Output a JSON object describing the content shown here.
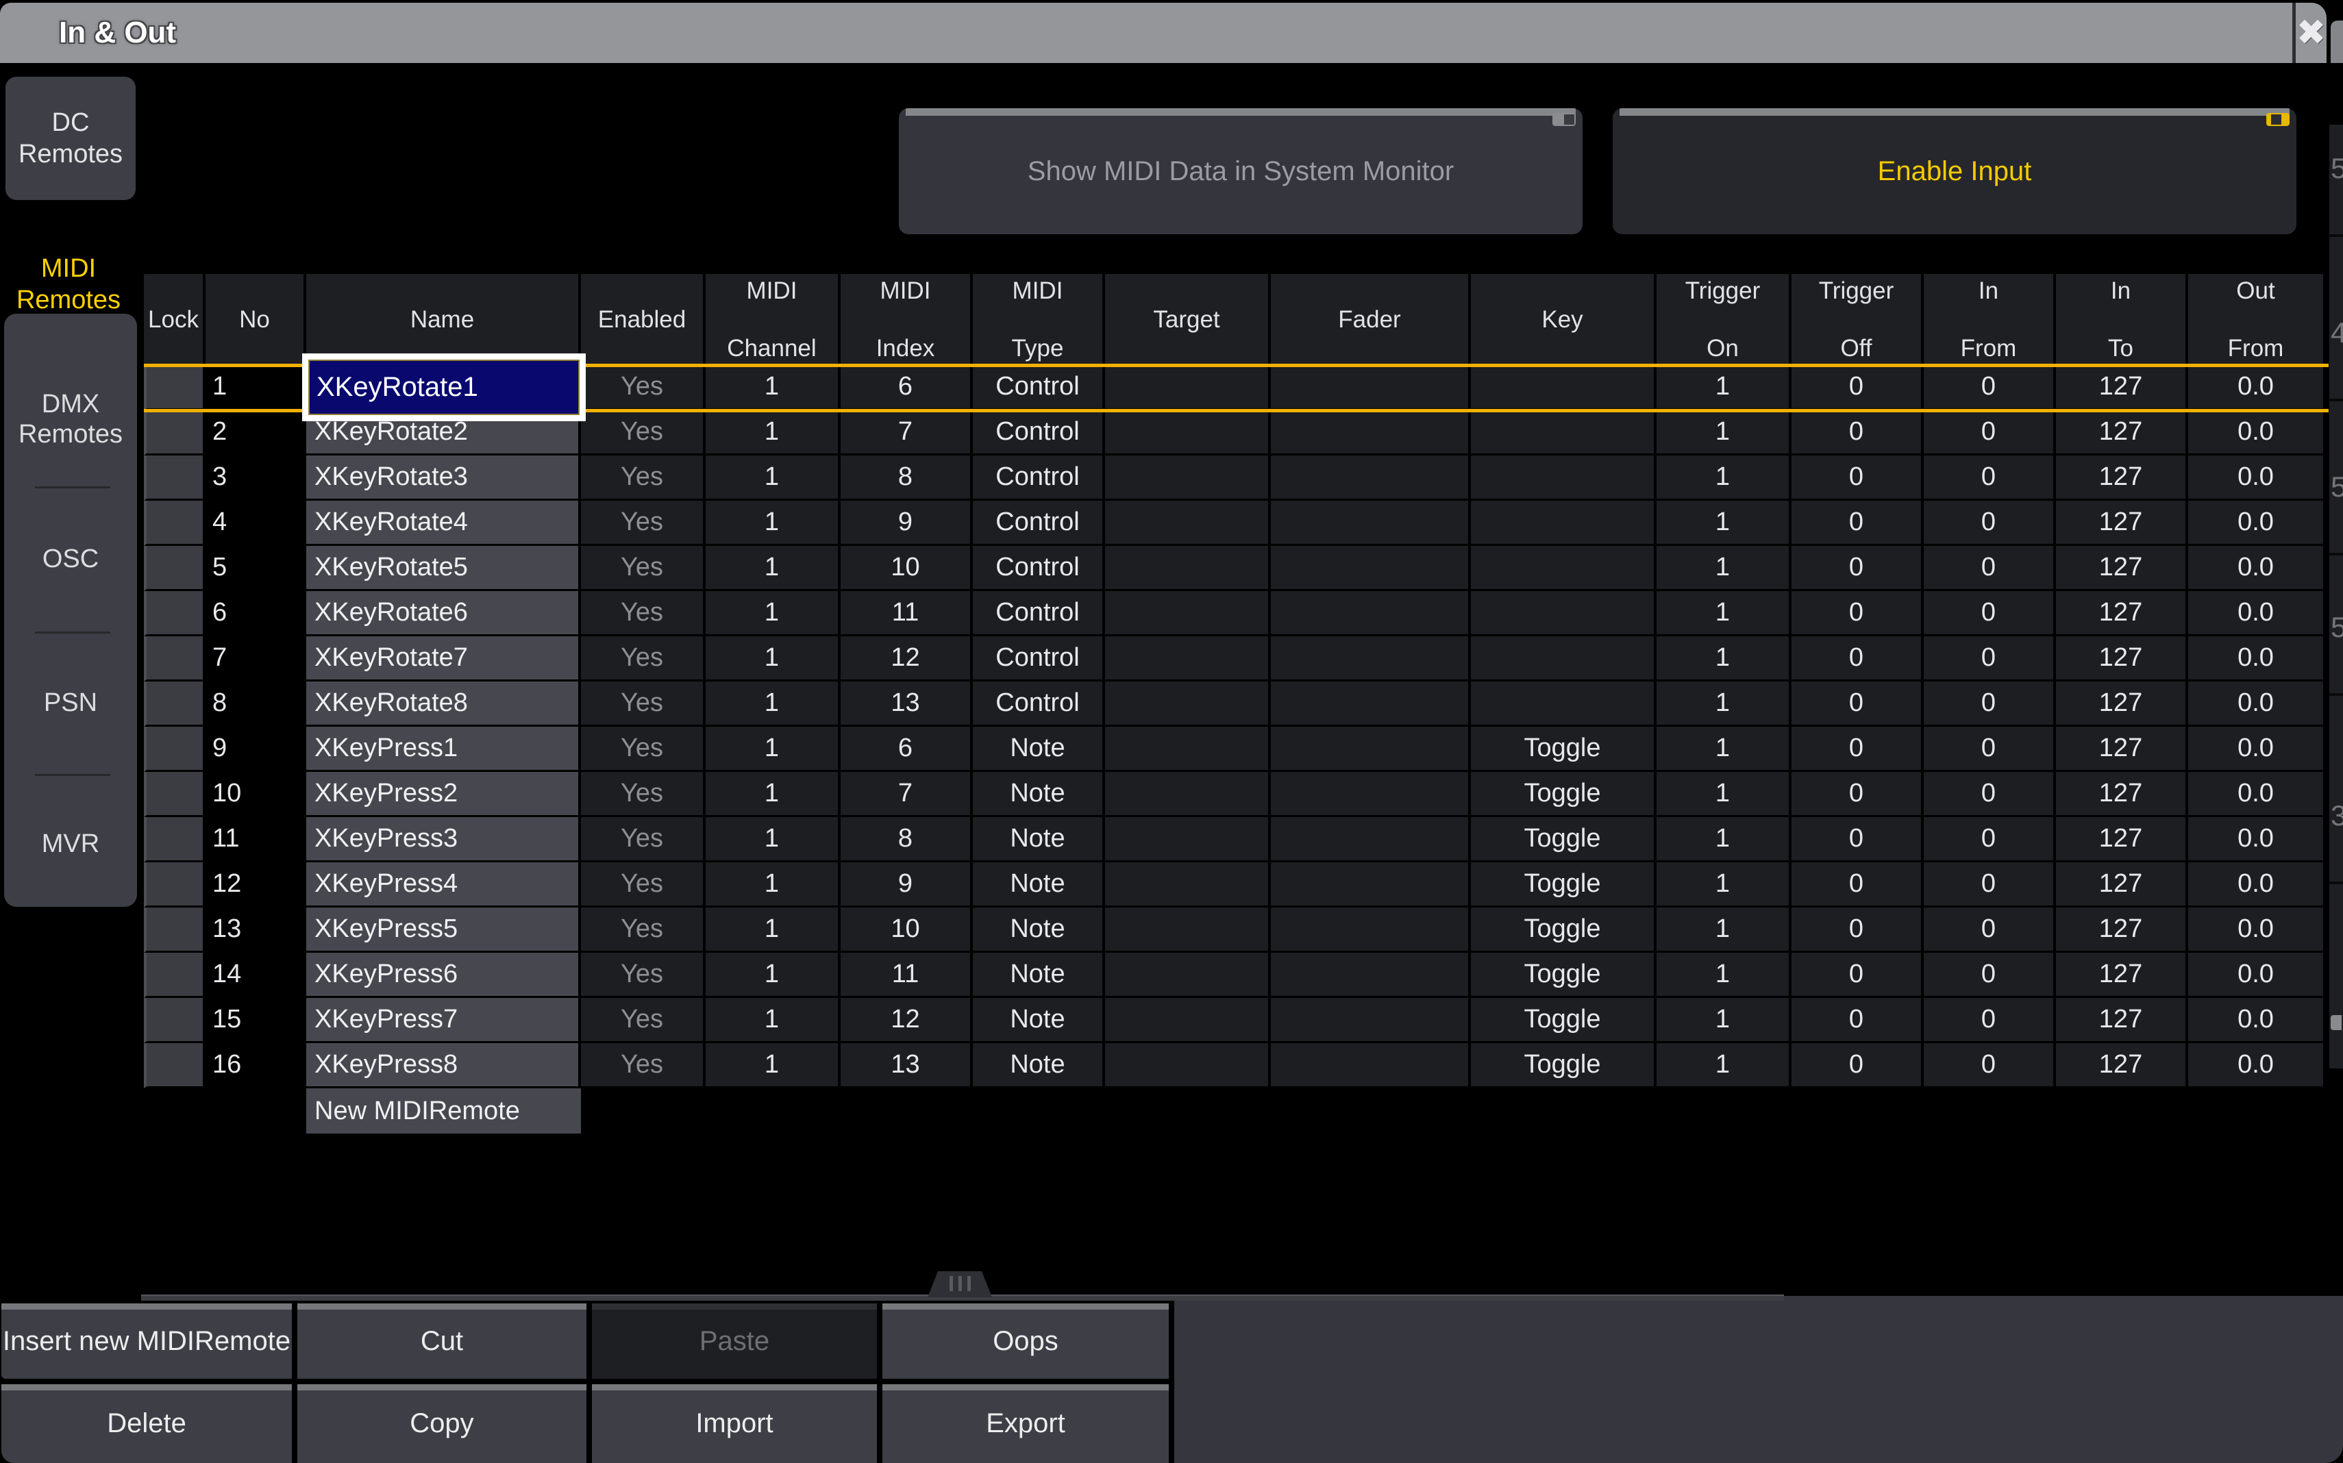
{
  "window": {
    "title": "In & Out",
    "close_icon": "✖"
  },
  "colors": {
    "accent_yellow": "#ffd200",
    "selection_line": "#f2b100",
    "selected_cell_bg": "#08086e",
    "titlebar_gray": "#95969a",
    "panel_gray": "#3e3f46",
    "cell_dark": "#1d1e22",
    "name_cell_gray": "#47484f",
    "disabled_text": "#8e8f93"
  },
  "sidebar": {
    "tabs": [
      {
        "label": "DC Remotes",
        "selected": false
      },
      {
        "label": "MIDI Remotes",
        "selected": true
      },
      {
        "label": "DMX Remotes",
        "selected": false
      },
      {
        "label": "OSC",
        "selected": false
      },
      {
        "label": "PSN",
        "selected": false
      },
      {
        "label": "MVR",
        "selected": false
      }
    ]
  },
  "top_buttons": {
    "show_midi": {
      "label": "Show MIDI Data in System Monitor",
      "state": "off"
    },
    "enable_input": {
      "label": "Enable Input",
      "state": "on"
    }
  },
  "table": {
    "columns": [
      "Lock",
      "No",
      "Name",
      "Enabled",
      "MIDI Channel",
      "MIDI Index",
      "MIDI Type",
      "Target",
      "Fader",
      "Key",
      "Trigger On",
      "Trigger Off",
      "In From",
      "In To",
      "Out From"
    ],
    "rows": [
      {
        "no": "1",
        "name": "XKeyRotate1",
        "enabled": "Yes",
        "midi_channel": "1",
        "midi_index": "6",
        "midi_type": "Control",
        "target": "",
        "fader": "",
        "key": "",
        "trigger_on": "1",
        "trigger_off": "0",
        "in_from": "0",
        "in_to": "127",
        "out_from": "0.0"
      },
      {
        "no": "2",
        "name": "XKeyRotate2",
        "enabled": "Yes",
        "midi_channel": "1",
        "midi_index": "7",
        "midi_type": "Control",
        "target": "",
        "fader": "",
        "key": "",
        "trigger_on": "1",
        "trigger_off": "0",
        "in_from": "0",
        "in_to": "127",
        "out_from": "0.0"
      },
      {
        "no": "3",
        "name": "XKeyRotate3",
        "enabled": "Yes",
        "midi_channel": "1",
        "midi_index": "8",
        "midi_type": "Control",
        "target": "",
        "fader": "",
        "key": "",
        "trigger_on": "1",
        "trigger_off": "0",
        "in_from": "0",
        "in_to": "127",
        "out_from": "0.0"
      },
      {
        "no": "4",
        "name": "XKeyRotate4",
        "enabled": "Yes",
        "midi_channel": "1",
        "midi_index": "9",
        "midi_type": "Control",
        "target": "",
        "fader": "",
        "key": "",
        "trigger_on": "1",
        "trigger_off": "0",
        "in_from": "0",
        "in_to": "127",
        "out_from": "0.0"
      },
      {
        "no": "5",
        "name": "XKeyRotate5",
        "enabled": "Yes",
        "midi_channel": "1",
        "midi_index": "10",
        "midi_type": "Control",
        "target": "",
        "fader": "",
        "key": "",
        "trigger_on": "1",
        "trigger_off": "0",
        "in_from": "0",
        "in_to": "127",
        "out_from": "0.0"
      },
      {
        "no": "6",
        "name": "XKeyRotate6",
        "enabled": "Yes",
        "midi_channel": "1",
        "midi_index": "11",
        "midi_type": "Control",
        "target": "",
        "fader": "",
        "key": "",
        "trigger_on": "1",
        "trigger_off": "0",
        "in_from": "0",
        "in_to": "127",
        "out_from": "0.0"
      },
      {
        "no": "7",
        "name": "XKeyRotate7",
        "enabled": "Yes",
        "midi_channel": "1",
        "midi_index": "12",
        "midi_type": "Control",
        "target": "",
        "fader": "",
        "key": "",
        "trigger_on": "1",
        "trigger_off": "0",
        "in_from": "0",
        "in_to": "127",
        "out_from": "0.0"
      },
      {
        "no": "8",
        "name": "XKeyRotate8",
        "enabled": "Yes",
        "midi_channel": "1",
        "midi_index": "13",
        "midi_type": "Control",
        "target": "",
        "fader": "",
        "key": "",
        "trigger_on": "1",
        "trigger_off": "0",
        "in_from": "0",
        "in_to": "127",
        "out_from": "0.0"
      },
      {
        "no": "9",
        "name": "XKeyPress1",
        "enabled": "Yes",
        "midi_channel": "1",
        "midi_index": "6",
        "midi_type": "Note",
        "target": "",
        "fader": "",
        "key": "Toggle",
        "trigger_on": "1",
        "trigger_off": "0",
        "in_from": "0",
        "in_to": "127",
        "out_from": "0.0"
      },
      {
        "no": "10",
        "name": "XKeyPress2",
        "enabled": "Yes",
        "midi_channel": "1",
        "midi_index": "7",
        "midi_type": "Note",
        "target": "",
        "fader": "",
        "key": "Toggle",
        "trigger_on": "1",
        "trigger_off": "0",
        "in_from": "0",
        "in_to": "127",
        "out_from": "0.0"
      },
      {
        "no": "11",
        "name": "XKeyPress3",
        "enabled": "Yes",
        "midi_channel": "1",
        "midi_index": "8",
        "midi_type": "Note",
        "target": "",
        "fader": "",
        "key": "Toggle",
        "trigger_on": "1",
        "trigger_off": "0",
        "in_from": "0",
        "in_to": "127",
        "out_from": "0.0"
      },
      {
        "no": "12",
        "name": "XKeyPress4",
        "enabled": "Yes",
        "midi_channel": "1",
        "midi_index": "9",
        "midi_type": "Note",
        "target": "",
        "fader": "",
        "key": "Toggle",
        "trigger_on": "1",
        "trigger_off": "0",
        "in_from": "0",
        "in_to": "127",
        "out_from": "0.0"
      },
      {
        "no": "13",
        "name": "XKeyPress5",
        "enabled": "Yes",
        "midi_channel": "1",
        "midi_index": "10",
        "midi_type": "Note",
        "target": "",
        "fader": "",
        "key": "Toggle",
        "trigger_on": "1",
        "trigger_off": "0",
        "in_from": "0",
        "in_to": "127",
        "out_from": "0.0"
      },
      {
        "no": "14",
        "name": "XKeyPress6",
        "enabled": "Yes",
        "midi_channel": "1",
        "midi_index": "11",
        "midi_type": "Note",
        "target": "",
        "fader": "",
        "key": "Toggle",
        "trigger_on": "1",
        "trigger_off": "0",
        "in_from": "0",
        "in_to": "127",
        "out_from": "0.0"
      },
      {
        "no": "15",
        "name": "XKeyPress7",
        "enabled": "Yes",
        "midi_channel": "1",
        "midi_index": "12",
        "midi_type": "Note",
        "target": "",
        "fader": "",
        "key": "Toggle",
        "trigger_on": "1",
        "trigger_off": "0",
        "in_from": "0",
        "in_to": "127",
        "out_from": "0.0"
      },
      {
        "no": "16",
        "name": "XKeyPress8",
        "enabled": "Yes",
        "midi_channel": "1",
        "midi_index": "13",
        "midi_type": "Note",
        "target": "",
        "fader": "",
        "key": "Toggle",
        "trigger_on": "1",
        "trigger_off": "0",
        "in_from": "0",
        "in_to": "127",
        "out_from": "0.0"
      }
    ],
    "new_row_label": "New MIDIRemote",
    "selection": {
      "row": "1",
      "column": "Name",
      "value": "XKeyRotate1"
    }
  },
  "toolbar": {
    "row1": [
      "Insert new MIDIRemote",
      "Cut",
      "Paste",
      "Oops"
    ],
    "row2": [
      "Delete",
      "Copy",
      "Import",
      "Export"
    ],
    "disabled": [
      "Paste"
    ]
  },
  "edge_fragments": [
    "5",
    "4",
    "5",
    "5",
    "3"
  ]
}
